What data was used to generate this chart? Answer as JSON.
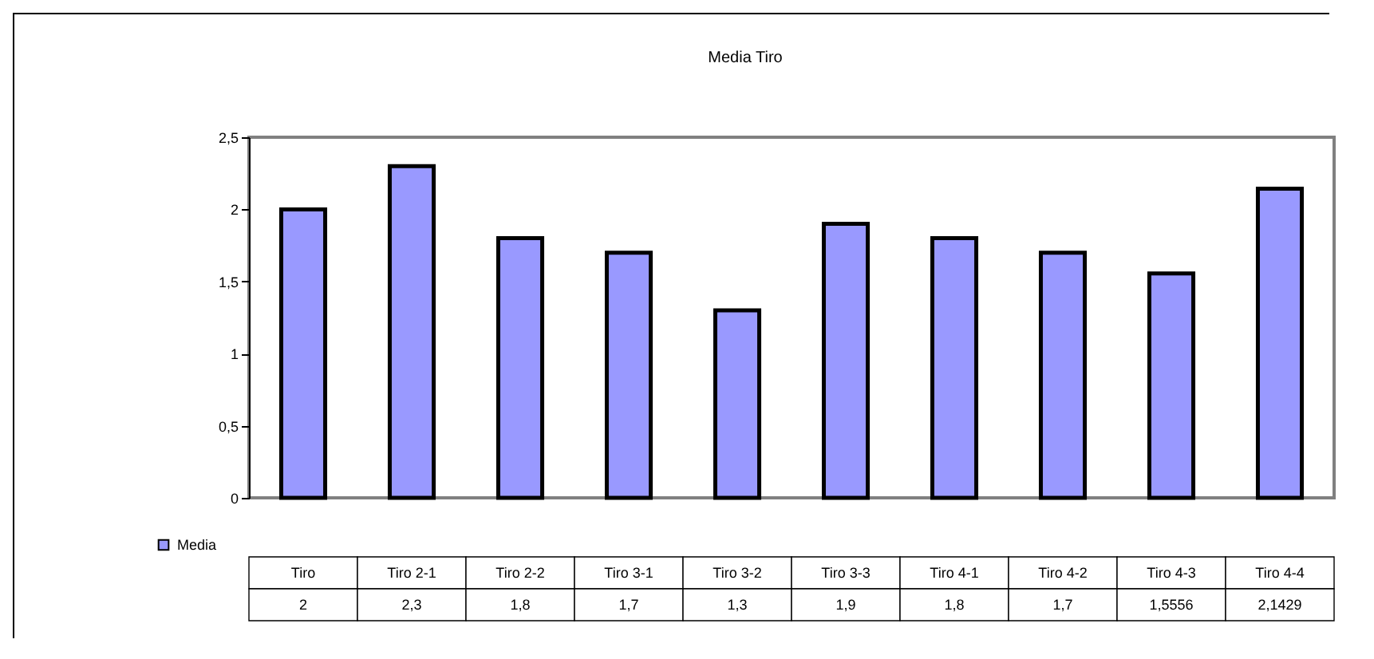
{
  "chart_data": {
    "type": "bar",
    "title": "Media Tiro",
    "categories": [
      "Tiro",
      "Tiro 2-1",
      "Tiro 2-2",
      "Tiro 3-1",
      "Tiro 3-2",
      "Tiro 3-3",
      "Tiro 4-1",
      "Tiro 4-2",
      "Tiro 4-3",
      "Tiro 4-4"
    ],
    "series": [
      {
        "name": "Media",
        "color": "#9999ff",
        "values": [
          2,
          2.3,
          1.8,
          1.7,
          1.3,
          1.9,
          1.8,
          1.7,
          1.5556,
          2.1429
        ]
      }
    ],
    "ylim": [
      0,
      2.5
    ],
    "yticks": [
      0,
      {
        "value": 0.5,
        "label": "0,5"
      },
      1,
      {
        "value": 1.5,
        "label": "1,5"
      },
      2,
      {
        "value": 2.5,
        "label": "2,5"
      }
    ],
    "value_labels": [
      "2",
      "2,3",
      "1,8",
      "1,7",
      "1,3",
      "1,9",
      "1,8",
      "1,7",
      "1,5556",
      "2,1429"
    ],
    "legend": "bottom left"
  }
}
